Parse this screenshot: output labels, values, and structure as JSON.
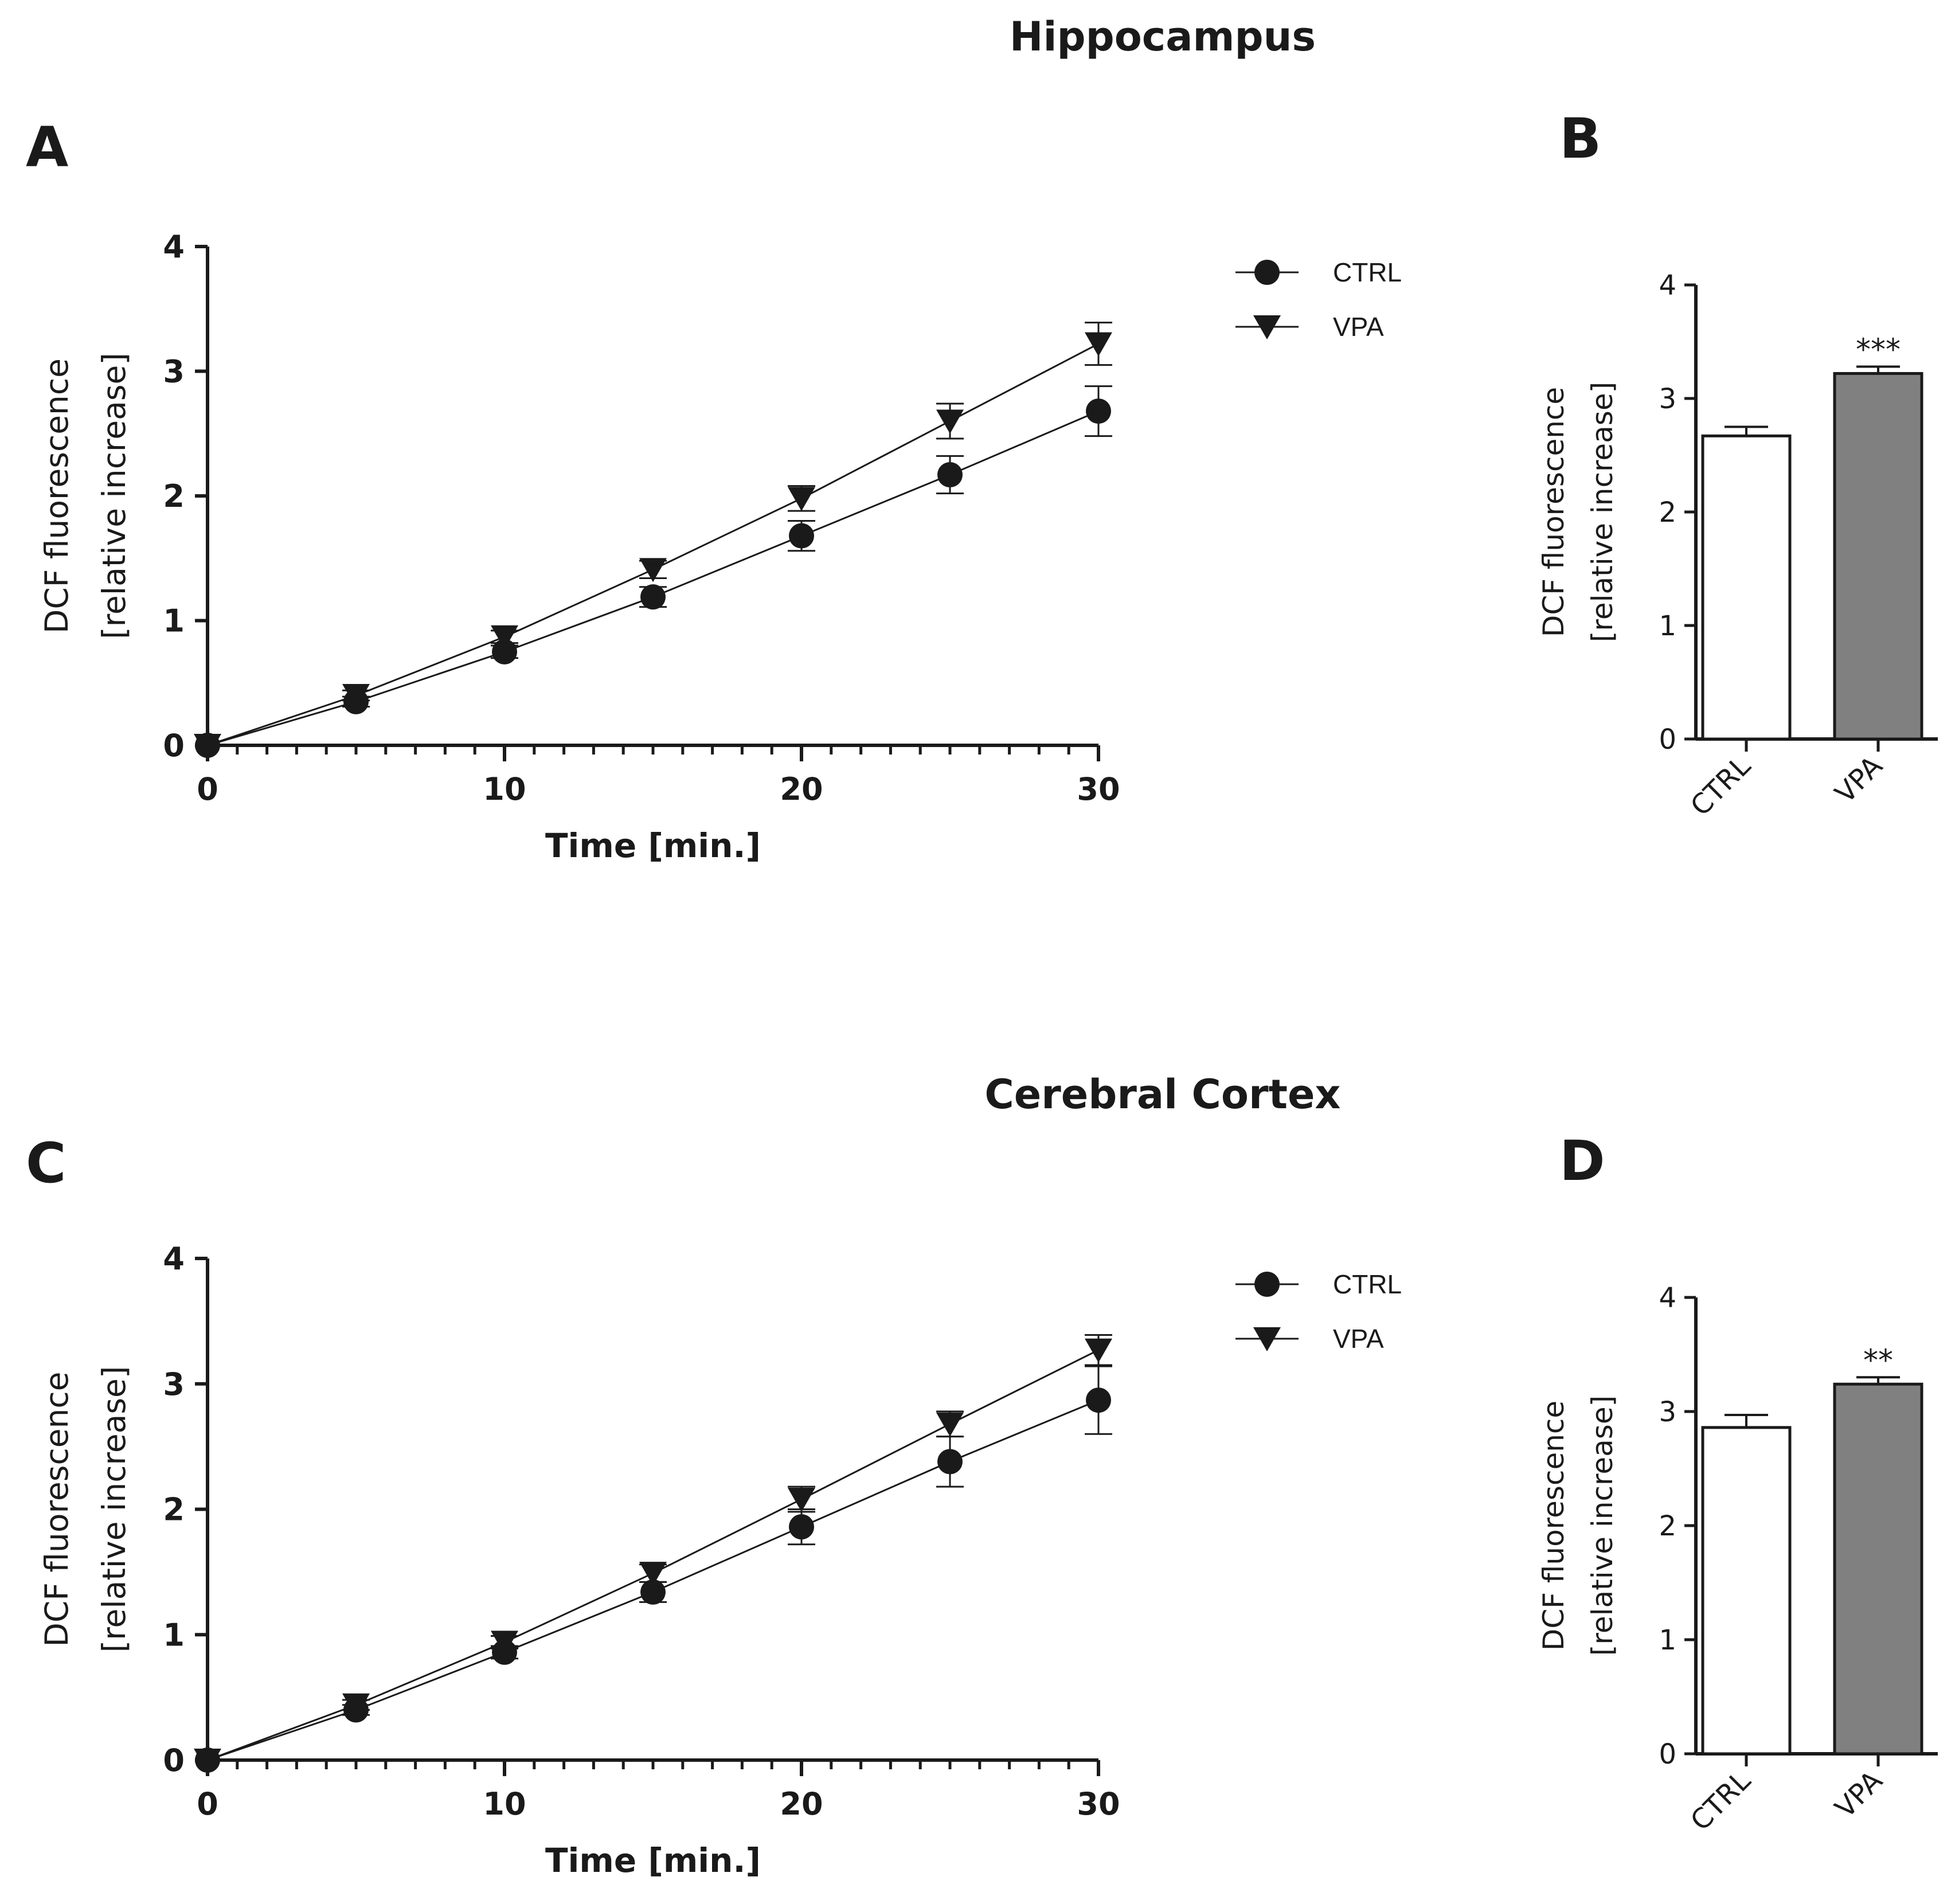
{
  "section_titles": {
    "top": "Hippocampus",
    "bottom": "Cerebral Cortex"
  },
  "chart_data": [
    {
      "panel": "A",
      "type": "line",
      "section": "Hippocampus",
      "xlabel": "Time [min.]",
      "ylabel": [
        "DCF fluorescence",
        "[relative increase]"
      ],
      "xlim": [
        0,
        30
      ],
      "ylim": [
        0,
        4
      ],
      "xticks": [
        0,
        10,
        20,
        30
      ],
      "yticks": [
        0,
        1,
        2,
        3,
        4
      ],
      "legend": {
        "position": "top-right-outside",
        "entries": [
          "CTRL",
          "VPA"
        ]
      },
      "x": [
        0,
        5,
        10,
        15,
        20,
        25,
        30
      ],
      "series": [
        {
          "name": "CTRL",
          "marker": "circle",
          "values": [
            0,
            0.35,
            0.75,
            1.19,
            1.68,
            2.17,
            2.68
          ],
          "errors": [
            0,
            0.04,
            0.05,
            0.08,
            0.12,
            0.15,
            0.2
          ]
        },
        {
          "name": "VPA",
          "marker": "triangle-down",
          "values": [
            0,
            0.4,
            0.87,
            1.41,
            1.98,
            2.6,
            3.22
          ],
          "errors": [
            0,
            0.04,
            0.05,
            0.07,
            0.1,
            0.14,
            0.17
          ]
        }
      ]
    },
    {
      "panel": "B",
      "type": "bar",
      "section": "Hippocampus",
      "ylabel": [
        "DCF fluorescence",
        "[relative increase]"
      ],
      "ylim": [
        0,
        4
      ],
      "yticks": [
        0,
        1,
        2,
        3,
        4
      ],
      "categories": [
        "CTRL",
        "VPA"
      ],
      "values": [
        2.67,
        3.22
      ],
      "errors": [
        0.08,
        0.06
      ],
      "fills": [
        "#ffffff",
        "#808080"
      ],
      "annotations": [
        "",
        "***"
      ]
    },
    {
      "panel": "C",
      "type": "line",
      "section": "Cerebral Cortex",
      "xlabel": "Time [min.]",
      "ylabel": [
        "DCF fluorescence",
        "[relative increase]"
      ],
      "xlim": [
        0,
        30
      ],
      "ylim": [
        0,
        4
      ],
      "xticks": [
        0,
        10,
        20,
        30
      ],
      "yticks": [
        0,
        1,
        2,
        3,
        4
      ],
      "legend": {
        "position": "top-right-outside",
        "entries": [
          "CTRL",
          "VPA"
        ]
      },
      "x": [
        0,
        5,
        10,
        15,
        20,
        25,
        30
      ],
      "series": [
        {
          "name": "CTRL",
          "marker": "circle",
          "values": [
            0,
            0.4,
            0.86,
            1.34,
            1.86,
            2.38,
            2.87
          ],
          "errors": [
            0,
            0.04,
            0.05,
            0.08,
            0.14,
            0.2,
            0.27
          ]
        },
        {
          "name": "VPA",
          "marker": "triangle-down",
          "values": [
            0,
            0.44,
            0.94,
            1.49,
            2.08,
            2.68,
            3.27
          ],
          "errors": [
            0,
            0.04,
            0.05,
            0.07,
            0.1,
            0.1,
            0.12
          ]
        }
      ]
    },
    {
      "panel": "D",
      "type": "bar",
      "section": "Cerebral Cortex",
      "ylabel": [
        "DCF fluorescence",
        "[relative increase]"
      ],
      "ylim": [
        0,
        4
      ],
      "yticks": [
        0,
        1,
        2,
        3,
        4
      ],
      "categories": [
        "CTRL",
        "VPA"
      ],
      "values": [
        2.86,
        3.24
      ],
      "errors": [
        0.11,
        0.06
      ],
      "fills": [
        "#ffffff",
        "#808080"
      ],
      "annotations": [
        "",
        "**"
      ]
    }
  ]
}
